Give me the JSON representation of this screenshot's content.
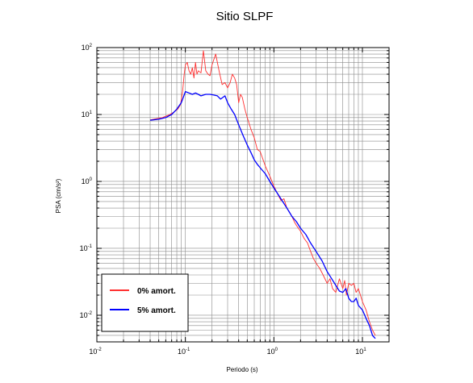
{
  "chart_data": {
    "type": "line",
    "title": "Sitio SLPF",
    "xlabel": "Periodo (s)",
    "ylabel": "PSA (cm/s²)",
    "xscale": "log",
    "yscale": "log",
    "xlim": [
      0.01,
      20
    ],
    "ylim": [
      0.004,
      100
    ],
    "grid": true,
    "legend_position": "bottom-left",
    "x_ticks": [
      {
        "base": "10",
        "exp": "-2"
      },
      {
        "base": "10",
        "exp": "-1"
      },
      {
        "base": "10",
        "exp": "0"
      },
      {
        "base": "10",
        "exp": "1"
      }
    ],
    "y_ticks": [
      {
        "base": "10",
        "exp": "-2"
      },
      {
        "base": "10",
        "exp": "-1"
      },
      {
        "base": "10",
        "exp": "0"
      },
      {
        "base": "10",
        "exp": "1"
      },
      {
        "base": "10",
        "exp": "2"
      }
    ],
    "series": [
      {
        "name": "0% amort.",
        "color": "#ff3030",
        "x": [
          0.04,
          0.055,
          0.065,
          0.075,
          0.082,
          0.088,
          0.093,
          0.097,
          0.1,
          0.105,
          0.11,
          0.115,
          0.12,
          0.125,
          0.13,
          0.135,
          0.14,
          0.15,
          0.16,
          0.17,
          0.18,
          0.19,
          0.2,
          0.22,
          0.24,
          0.26,
          0.28,
          0.3,
          0.32,
          0.34,
          0.36,
          0.38,
          0.4,
          0.42,
          0.44,
          0.47,
          0.5,
          0.55,
          0.6,
          0.65,
          0.7,
          0.8,
          0.9,
          1.0,
          1.1,
          1.2,
          1.3,
          1.4,
          1.5,
          1.6,
          1.7,
          1.8,
          2.0,
          2.2,
          2.4,
          2.6,
          2.8,
          3.0,
          3.3,
          3.6,
          4.0,
          4.3,
          4.6,
          5.0,
          5.5,
          6.0,
          6.3,
          6.6,
          7.0,
          7.5,
          8.0,
          8.5,
          9.0,
          10.0,
          11.0,
          12.0,
          13.0,
          14.0
        ],
        "y": [
          8.3,
          9.0,
          9.8,
          11.0,
          12.0,
          14.0,
          22.0,
          40.0,
          55.0,
          60.0,
          45.0,
          40.0,
          50.0,
          35.0,
          60.0,
          40.0,
          45.0,
          42.0,
          90.0,
          45.0,
          40.0,
          38.0,
          55.0,
          80.0,
          45.0,
          28.0,
          30.0,
          25.0,
          30.0,
          40.0,
          35.0,
          28.0,
          15.0,
          20.0,
          18.0,
          12.0,
          9.0,
          6.0,
          4.5,
          3.0,
          2.8,
          1.7,
          1.2,
          0.85,
          0.65,
          0.52,
          0.55,
          0.4,
          0.35,
          0.3,
          0.25,
          0.22,
          0.18,
          0.14,
          0.12,
          0.09,
          0.07,
          0.06,
          0.05,
          0.04,
          0.03,
          0.035,
          0.025,
          0.022,
          0.035,
          0.025,
          0.033,
          0.02,
          0.03,
          0.028,
          0.03,
          0.022,
          0.025,
          0.016,
          0.012,
          0.008,
          0.006,
          0.005
        ]
      },
      {
        "name": "5% amort.",
        "color": "#0000ff",
        "x": [
          0.04,
          0.05,
          0.06,
          0.07,
          0.08,
          0.09,
          0.1,
          0.11,
          0.12,
          0.13,
          0.14,
          0.15,
          0.17,
          0.19,
          0.21,
          0.23,
          0.25,
          0.28,
          0.3,
          0.33,
          0.36,
          0.4,
          0.45,
          0.5,
          0.55,
          0.6,
          0.65,
          0.7,
          0.8,
          0.9,
          1.0,
          1.2,
          1.4,
          1.6,
          1.8,
          2.0,
          2.3,
          2.6,
          3.0,
          3.5,
          4.0,
          4.5,
          5.0,
          5.5,
          6.0,
          6.5,
          7.0,
          7.5,
          8.0,
          8.5,
          9.0,
          10.0,
          11.0,
          12.0,
          13.0,
          14.0
        ],
        "y": [
          8.2,
          8.5,
          9.0,
          10.0,
          12.0,
          15.0,
          22.0,
          21.0,
          20.0,
          21.0,
          20.0,
          19.0,
          20.0,
          20.0,
          19.5,
          19.0,
          17.0,
          19.0,
          15.0,
          12.0,
          10.0,
          7.0,
          4.8,
          3.5,
          2.7,
          2.1,
          1.8,
          1.6,
          1.3,
          1.0,
          0.8,
          0.55,
          0.4,
          0.3,
          0.25,
          0.2,
          0.16,
          0.12,
          0.09,
          0.065,
          0.045,
          0.035,
          0.028,
          0.023,
          0.022,
          0.025,
          0.018,
          0.016,
          0.016,
          0.018,
          0.014,
          0.012,
          0.009,
          0.007,
          0.005,
          0.0045
        ]
      }
    ]
  }
}
